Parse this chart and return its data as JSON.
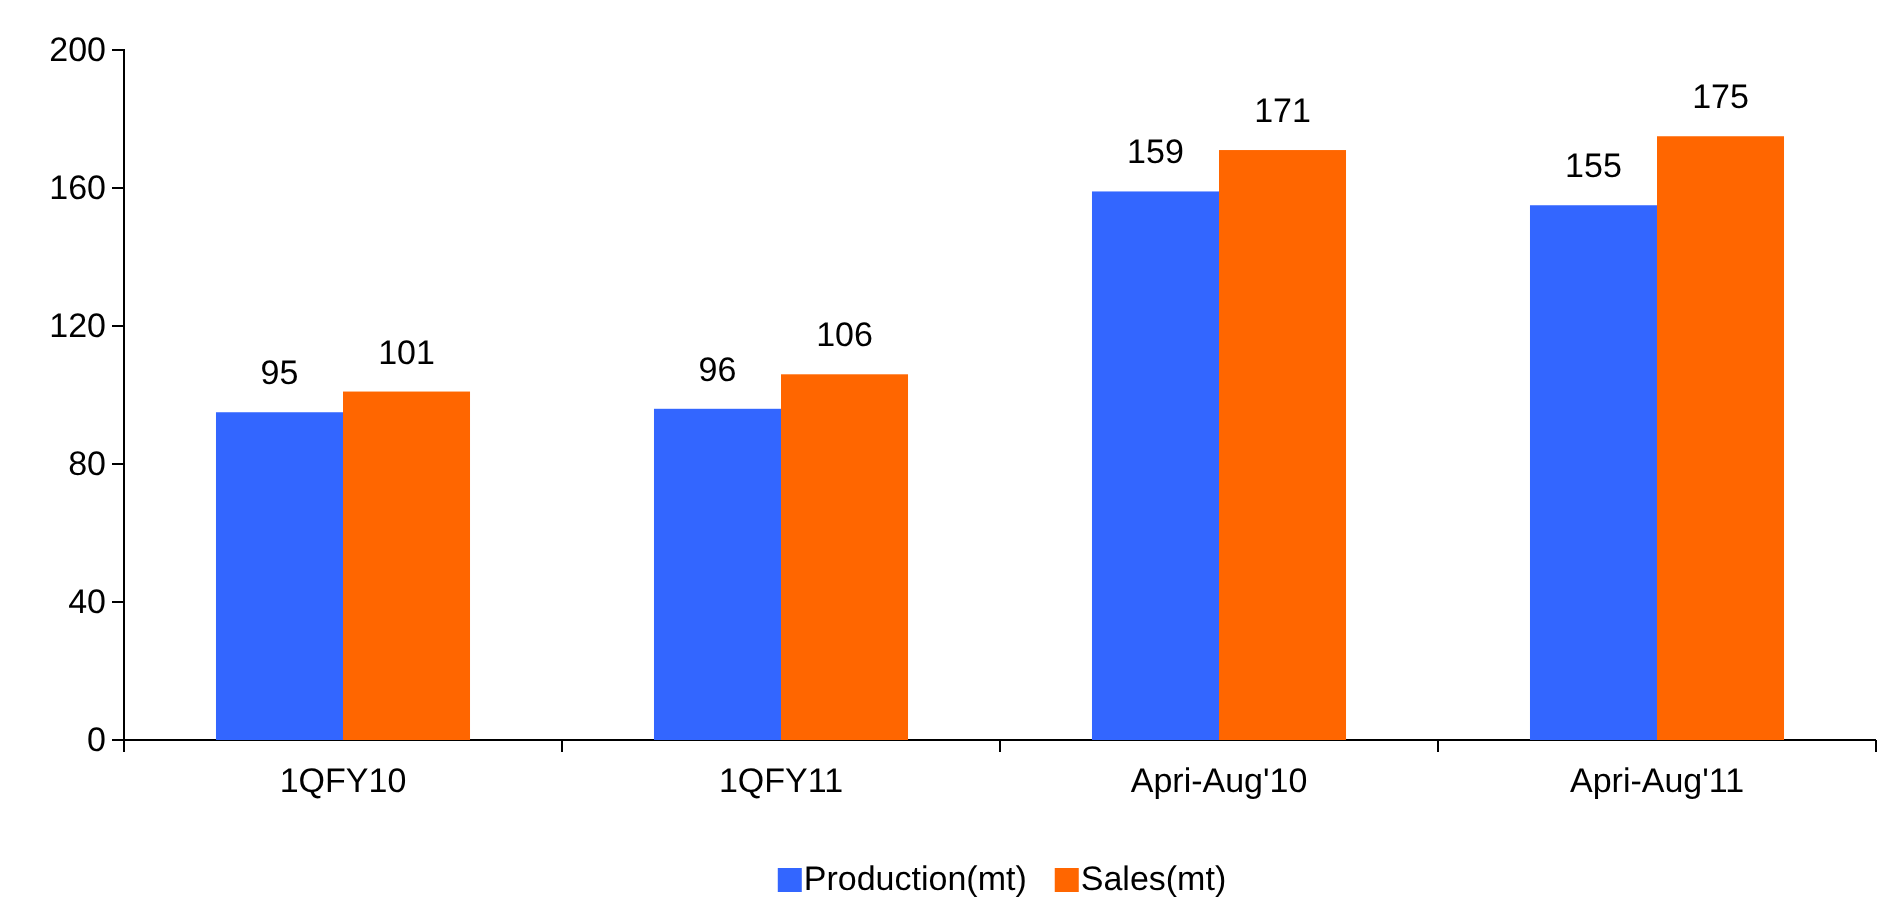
{
  "chart_data": {
    "type": "bar",
    "categories": [
      "1QFY10",
      "1QFY11",
      "Apri-Aug'10",
      "Apri-Aug'11"
    ],
    "series": [
      {
        "name": "Production(mt)",
        "color": "#3366ff",
        "values": [
          95,
          96,
          159,
          155
        ]
      },
      {
        "name": "Sales(mt)",
        "color": "#ff6600",
        "values": [
          101,
          106,
          171,
          175
        ]
      }
    ],
    "ylim": [
      0,
      200
    ],
    "yticks": [
      0,
      40,
      80,
      120,
      160,
      200
    ],
    "data_labels": true,
    "legend": "bottom",
    "grid": false
  }
}
